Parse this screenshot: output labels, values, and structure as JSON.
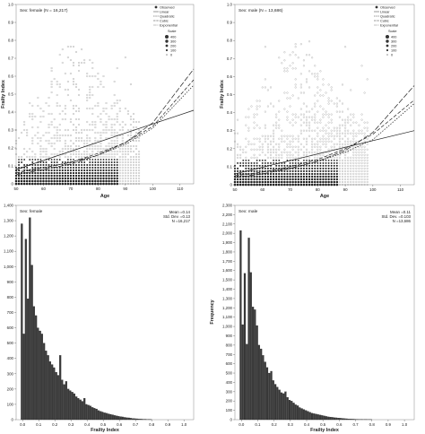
{
  "chart_data": [
    {
      "type": "scatter",
      "subtitle": "Sex: female (N = 16,217)",
      "xlabel": "Age",
      "ylabel": "Frailty Index",
      "xlim": [
        50,
        115
      ],
      "ylim": [
        0,
        1.0
      ],
      "xticks": [
        50,
        60,
        70,
        80,
        90,
        100,
        110
      ],
      "yticks": [
        0,
        0.1,
        0.2,
        0.3,
        0.4,
        0.5,
        0.6,
        0.7,
        0.8,
        0.9,
        1.0
      ],
      "scatter_xrange": [
        50,
        95
      ],
      "legend": {
        "placement": "top-right",
        "items": [
          "Observed",
          "Linear",
          "Quadratic",
          "Cubic",
          "Exponential"
        ],
        "scale_title": "Scale",
        "scale_items": [
          "400",
          "300",
          "200",
          "100",
          "0"
        ]
      },
      "fits": [
        {
          "name": "Linear",
          "x": [
            50,
            115
          ],
          "y": [
            0.08,
            0.41
          ],
          "dash": ""
        },
        {
          "name": "Quadratic",
          "x": [
            50,
            60,
            70,
            80,
            90,
            100,
            115
          ],
          "y": [
            0.06,
            0.09,
            0.12,
            0.17,
            0.23,
            0.32,
            0.58
          ],
          "dash": "4,2"
        },
        {
          "name": "Cubic",
          "x": [
            50,
            60,
            70,
            80,
            90,
            100,
            115
          ],
          "y": [
            0.05,
            0.08,
            0.11,
            0.16,
            0.23,
            0.34,
            0.64
          ],
          "dash": "6,2"
        },
        {
          "name": "Exponential",
          "x": [
            50,
            60,
            70,
            80,
            90,
            100,
            115
          ],
          "y": [
            0.07,
            0.09,
            0.12,
            0.16,
            0.22,
            0.31,
            0.55
          ],
          "dash": "1.5,1.5"
        }
      ]
    },
    {
      "type": "scatter",
      "subtitle": "Sex: male (N = 13,686)",
      "xlabel": "Age",
      "ylabel": "Frailty Index",
      "xlim": [
        50,
        115
      ],
      "ylim": [
        0,
        1.0
      ],
      "xticks": [
        50,
        60,
        70,
        80,
        90,
        100,
        110
      ],
      "yticks": [
        0,
        0.1,
        0.2,
        0.3,
        0.4,
        0.5,
        0.6,
        0.7,
        0.8,
        0.9,
        1.0
      ],
      "scatter_xrange": [
        50,
        98
      ],
      "legend": {
        "placement": "top-right",
        "items": [
          "Observed",
          "Linear",
          "Quadratic",
          "Cubic",
          "Exponential"
        ],
        "scale_title": "Scale",
        "scale_items": [
          "400",
          "300",
          "200",
          "100",
          "0"
        ]
      },
      "fits": [
        {
          "name": "Linear",
          "x": [
            50,
            115
          ],
          "y": [
            0.06,
            0.3
          ],
          "dash": ""
        },
        {
          "name": "Quadratic",
          "x": [
            50,
            60,
            70,
            80,
            90,
            100,
            115
          ],
          "y": [
            0.05,
            0.07,
            0.1,
            0.14,
            0.2,
            0.28,
            0.47
          ],
          "dash": "4,2"
        },
        {
          "name": "Cubic",
          "x": [
            50,
            60,
            70,
            80,
            90,
            100,
            115
          ],
          "y": [
            0.04,
            0.06,
            0.09,
            0.13,
            0.19,
            0.29,
            0.55
          ],
          "dash": "6,2"
        },
        {
          "name": "Exponential",
          "x": [
            50,
            60,
            70,
            80,
            90,
            100,
            115
          ],
          "y": [
            0.05,
            0.07,
            0.09,
            0.13,
            0.18,
            0.25,
            0.45
          ],
          "dash": "1.5,1.5"
        }
      ]
    },
    {
      "type": "bar",
      "subtitle": "Sex: female",
      "xlabel": "Frailty Index",
      "ylabel": "",
      "xlim": [
        -0.04,
        1.06
      ],
      "ylim": [
        0,
        1400
      ],
      "xticks": [
        0.0,
        0.1,
        0.2,
        0.3,
        0.4,
        0.5,
        0.6,
        0.7,
        0.8,
        0.9,
        1.0
      ],
      "yticks": [
        0,
        100,
        200,
        300,
        400,
        500,
        600,
        700,
        800,
        900,
        1000,
        1100,
        1200,
        1300,
        1400
      ],
      "ytick_labels": [
        "0",
        "100",
        "200",
        "300",
        "400",
        "500",
        "600",
        "700",
        "800",
        "900",
        "1,000",
        "1,100",
        "1,200",
        "1,300",
        "1,400"
      ],
      "bin_start": -0.01,
      "bin_width": 0.0125,
      "values": [
        1280,
        560,
        1180,
        790,
        1320,
        1010,
        740,
        680,
        600,
        580,
        560,
        500,
        450,
        420,
        380,
        360,
        340,
        310,
        290,
        420,
        260,
        230,
        250,
        200,
        190,
        180,
        170,
        150,
        140,
        130,
        120,
        140,
        100,
        95,
        90,
        80,
        75,
        70,
        60,
        55,
        50,
        45,
        42,
        38,
        35,
        32,
        28,
        25,
        22,
        20,
        18,
        15,
        13,
        12,
        10,
        8,
        7,
        6,
        5,
        4,
        3,
        3,
        2,
        2,
        1
      ],
      "stats": [
        "Mean =0.14",
        "Std. Dev. =0.13",
        "N =16,217"
      ]
    },
    {
      "type": "bar",
      "subtitle": "Sex: male",
      "xlabel": "Frailty Index",
      "ylabel": "Frequency",
      "xlim": [
        -0.04,
        1.06
      ],
      "ylim": [
        0,
        2300
      ],
      "xticks": [
        0.0,
        0.1,
        0.2,
        0.3,
        0.4,
        0.5,
        0.6,
        0.7,
        0.8,
        0.9,
        1.0
      ],
      "yticks": [
        0,
        100,
        200,
        300,
        400,
        500,
        600,
        700,
        800,
        900,
        1000,
        1100,
        1200,
        1300,
        1400,
        1500,
        1600,
        1700,
        1800,
        1900,
        2000,
        2100,
        2200,
        2300
      ],
      "ytick_labels": [
        "0",
        "100",
        "200",
        "300",
        "400",
        "500",
        "600",
        "700",
        "800",
        "900",
        "1,000",
        "1,100",
        "1,200",
        "1,300",
        "1,400",
        "1,500",
        "1,600",
        "1,700",
        "1,800",
        "1,900",
        "2,000",
        "2,100",
        "2,200",
        "2,300"
      ],
      "bin_start": -0.01,
      "bin_width": 0.0125,
      "values": [
        2030,
        1020,
        1570,
        810,
        1950,
        1580,
        1210,
        1180,
        1010,
        800,
        760,
        690,
        620,
        560,
        500,
        520,
        420,
        380,
        350,
        320,
        290,
        280,
        300,
        240,
        210,
        200,
        180,
        160,
        150,
        130,
        120,
        110,
        100,
        90,
        80,
        70,
        65,
        60,
        55,
        50,
        45,
        40,
        35,
        30,
        28,
        25,
        22,
        20,
        18,
        16,
        14,
        12,
        10,
        8,
        7,
        6,
        5,
        4,
        3,
        3,
        2,
        2,
        1,
        1,
        1
      ],
      "stats": [
        "Mean =0.11",
        "Std. Dev. =0.103",
        "N =13,686"
      ]
    }
  ]
}
